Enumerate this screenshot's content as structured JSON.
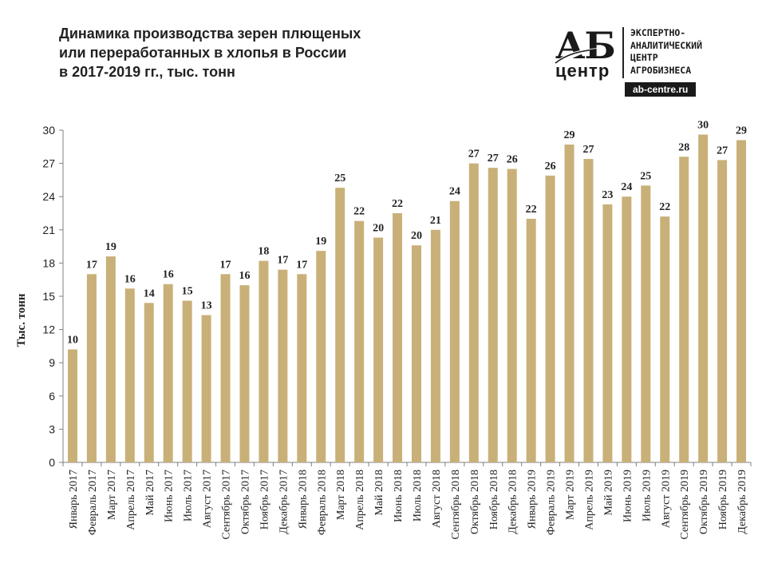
{
  "title_lines": [
    "Динамика производства зерен плющеных",
    "или переработанных в хлопья в России",
    "в 2017-2019 гг., тыс. тонн"
  ],
  "logo": {
    "mark_top": "АБ",
    "mark_bottom": "центр",
    "text_lines": [
      "ЭКСПЕРТНО-",
      "АНАЛИТИЧЕСКИЙ",
      "ЦЕНТР",
      "АГРОБИЗНЕСА"
    ],
    "site": "ab-centre.ru"
  },
  "colors": {
    "bar": "#c9b078",
    "axis": "#7f7f7f",
    "text": "#222222"
  },
  "chart_data": {
    "type": "bar",
    "title": "Динамика производства зерен плющеных или переработанных в хлопья в России в 2017-2019 гг., тыс. тонн",
    "xlabel": "",
    "ylabel": "Тыс. тонн",
    "ylim": [
      0,
      30
    ],
    "yticks": [
      0,
      3,
      6,
      9,
      12,
      15,
      18,
      21,
      24,
      27,
      30
    ],
    "grid": false,
    "categories": [
      "Январь 2017",
      "Февраль 2017",
      "Март 2017",
      "Апрель 2017",
      "Май 2017",
      "Июнь 2017",
      "Июль 2017",
      "Август 2017",
      "Сентябрь 2017",
      "Октябрь 2017",
      "Ноябрь 2017",
      "Декабрь 2017",
      "Январь 2018",
      "Февраль 2018",
      "Март 2018",
      "Апрель 2018",
      "Май 2018",
      "Июнь 2018",
      "Июль 2018",
      "Август 2018",
      "Сентябрь 2018",
      "Октябрь 2018",
      "Ноябрь 2018",
      "Декабрь 2018",
      "Январь 2019",
      "Февраль 2019",
      "Март 2019",
      "Апрель 2019",
      "Май 2019",
      "Июнь 2019",
      "Июль 2019",
      "Август 2019",
      "Сентябрь 2019",
      "Октябрь 2019",
      "Ноябрь 2019",
      "Декабрь 2019"
    ],
    "values": [
      10.2,
      17.0,
      18.6,
      15.7,
      14.4,
      16.1,
      14.6,
      13.3,
      17.0,
      16.0,
      18.2,
      17.4,
      17.0,
      19.1,
      24.8,
      21.8,
      20.3,
      22.5,
      19.6,
      21.0,
      23.6,
      27.0,
      26.6,
      26.5,
      22.0,
      25.9,
      28.7,
      27.4,
      23.3,
      24.0,
      25.0,
      22.2,
      27.6,
      29.6,
      27.3,
      29.1
    ],
    "labels": [
      "10",
      "17",
      "19",
      "16",
      "14",
      "16",
      "15",
      "13",
      "17",
      "16",
      "18",
      "17",
      "17",
      "19",
      "25",
      "22",
      "20",
      "22",
      "20",
      "21",
      "24",
      "27",
      "27",
      "26",
      "22",
      "26",
      "29",
      "27",
      "23",
      "24",
      "25",
      "22",
      "28",
      "30",
      "27",
      "29"
    ]
  }
}
